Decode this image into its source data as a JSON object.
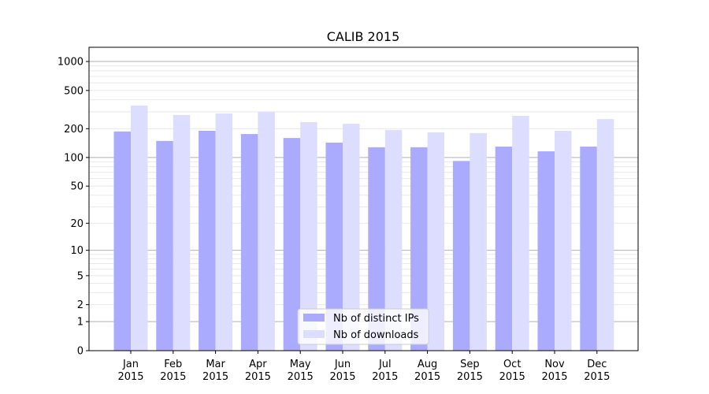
{
  "chart_data": {
    "type": "bar",
    "title": "CALIB 2015",
    "xlabel": "",
    "ylabel": "",
    "y_scale": "log(1+y)",
    "ylim": [
      0,
      1400
    ],
    "yticks": [
      0,
      1,
      2,
      5,
      10,
      20,
      50,
      100,
      200,
      500,
      1000
    ],
    "grid": true,
    "legend_position": "bottom-center",
    "categories": [
      [
        "Jan",
        "2015"
      ],
      [
        "Feb",
        "2015"
      ],
      [
        "Mar",
        "2015"
      ],
      [
        "Apr",
        "2015"
      ],
      [
        "May",
        "2015"
      ],
      [
        "Jun",
        "2015"
      ],
      [
        "Jul",
        "2015"
      ],
      [
        "Aug",
        "2015"
      ],
      [
        "Sep",
        "2015"
      ],
      [
        "Oct",
        "2015"
      ],
      [
        "Nov",
        "2015"
      ],
      [
        "Dec",
        "2015"
      ]
    ],
    "series": [
      {
        "name": "Nb of distinct IPs",
        "color": "#aaaaff",
        "values": [
          187,
          149,
          190,
          176,
          160,
          143,
          128,
          128,
          92,
          130,
          116,
          130
        ]
      },
      {
        "name": "Nb of downloads",
        "color": "#ddddff",
        "values": [
          348,
          278,
          288,
          299,
          234,
          225,
          194,
          183,
          180,
          272,
          190,
          252
        ]
      }
    ]
  }
}
